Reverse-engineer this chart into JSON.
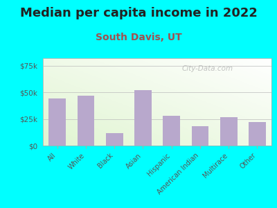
{
  "title": "Median per capita income in 2022",
  "subtitle": "South Davis, UT",
  "categories": [
    "All",
    "White",
    "Black",
    "Asian",
    "Hispanic",
    "American Indian",
    "Multirace",
    "Other"
  ],
  "values": [
    44000,
    47000,
    12000,
    52000,
    28000,
    18000,
    27000,
    22000
  ],
  "bar_color": "#b8a8cc",
  "title_color": "#222222",
  "subtitle_color": "#a05050",
  "background_outer": "#00FFFF",
  "ytick_labels": [
    "$0",
    "$25k",
    "$50k",
    "$75k"
  ],
  "ytick_values": [
    0,
    25000,
    50000,
    75000
  ],
  "ylim": [
    0,
    82000
  ],
  "watermark": "City-Data.com",
  "title_fontsize": 13,
  "subtitle_fontsize": 10
}
